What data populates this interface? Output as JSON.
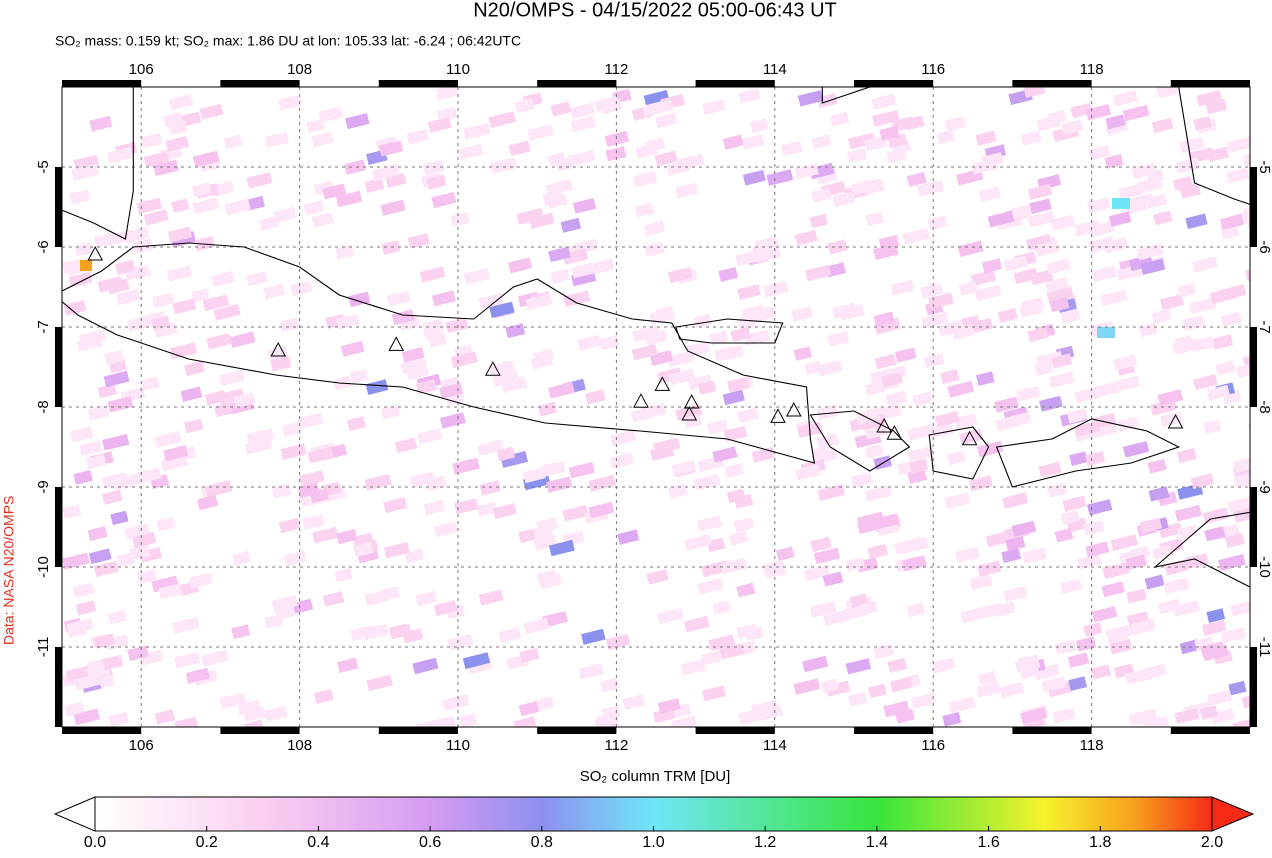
{
  "title": "N20/OMPS - 04/15/2022 05:00-06:43 UT",
  "subtitle": "SO₂ mass: 0.159 kt; SO₂ max: 1.86 DU at lon: 105.33 lat: -6.24 ; 06:42UTC",
  "credit": "Data: NASA N20/OMPS",
  "map": {
    "xlim": [
      105,
      120
    ],
    "ylim": [
      -4,
      -12
    ],
    "xticks": [
      106,
      108,
      110,
      112,
      114,
      116,
      118
    ],
    "yticks": [
      -5,
      -6,
      -7,
      -8,
      -9,
      -10,
      -11
    ],
    "grid": true
  },
  "colorbar": {
    "label": "SO₂ column TRM [DU]",
    "lim": [
      0,
      2
    ],
    "ticks": [
      {
        "value": 0,
        "label": "0.0"
      },
      0.2,
      0.4,
      0.6,
      0.8,
      {
        "value": 1,
        "label": "1.0"
      },
      1.2,
      1.4,
      1.6,
      1.8,
      {
        "value": 2,
        "label": "2.0"
      }
    ]
  }
}
